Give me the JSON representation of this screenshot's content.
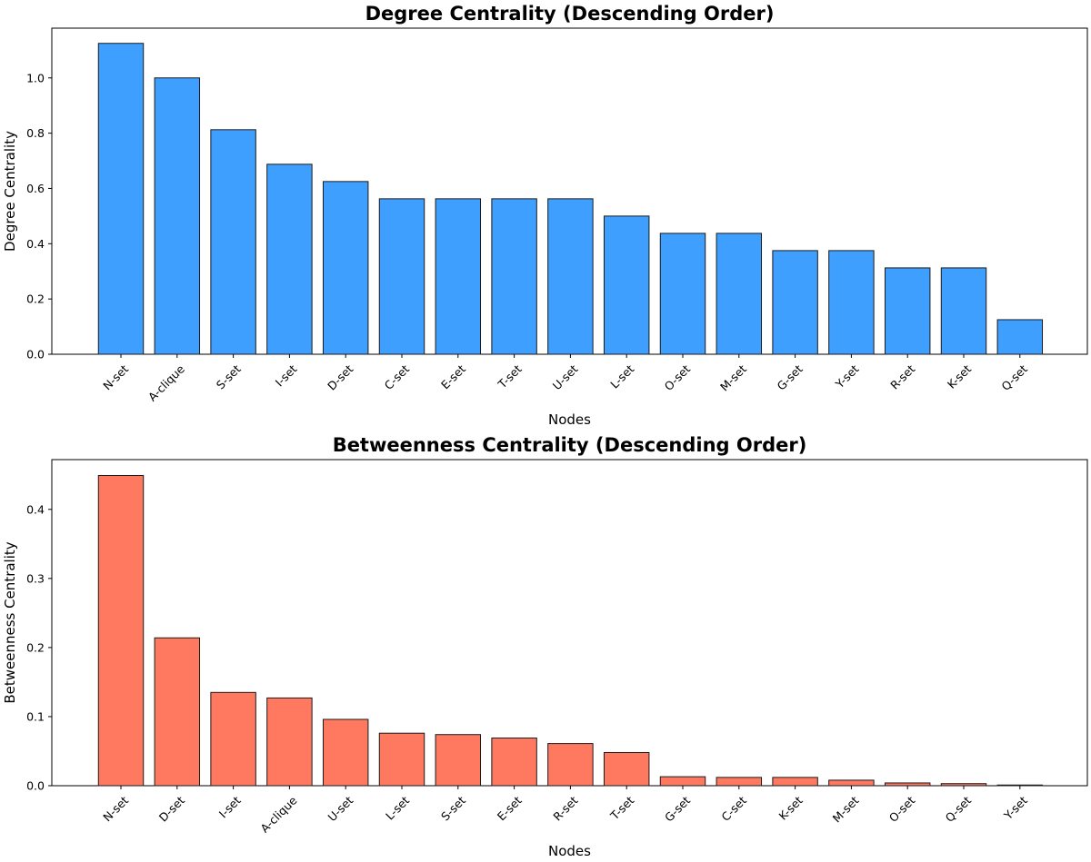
{
  "chart_data": [
    {
      "type": "bar",
      "title": "Degree Centrality (Descending Order)",
      "xlabel": "Nodes",
      "ylabel": "Degree Centrality",
      "ylim": [
        0,
        1.18
      ],
      "yticks": [
        "0.0",
        "0.2",
        "0.4",
        "0.6",
        "0.8",
        "1.0"
      ],
      "ytick_values": [
        0.0,
        0.2,
        0.4,
        0.6,
        0.8,
        1.0
      ],
      "categories": [
        "N-set",
        "A-clique",
        "S-set",
        "I-set",
        "D-set",
        "C-set",
        "E-set",
        "T-set",
        "U-set",
        "L-set",
        "O-set",
        "M-set",
        "G-set",
        "Y-set",
        "R-set",
        "K-set",
        "Q-set"
      ],
      "values": [
        1.125,
        1.0,
        0.8125,
        0.6875,
        0.625,
        0.5625,
        0.5625,
        0.5625,
        0.5625,
        0.5,
        0.4375,
        0.4375,
        0.375,
        0.375,
        0.3125,
        0.3125,
        0.125
      ],
      "color": "#3f9fff",
      "grid": false,
      "legend": "none"
    },
    {
      "type": "bar",
      "title": "Betweenness Centrality (Descending Order)",
      "xlabel": "Nodes",
      "ylabel": "Betweenness Centrality",
      "ylim": [
        0,
        0.472
      ],
      "yticks": [
        "0.0",
        "0.1",
        "0.2",
        "0.3",
        "0.4"
      ],
      "ytick_values": [
        0.0,
        0.1,
        0.2,
        0.3,
        0.4
      ],
      "categories": [
        "N-set",
        "D-set",
        "I-set",
        "A-clique",
        "U-set",
        "L-set",
        "S-set",
        "E-set",
        "R-set",
        "T-set",
        "G-set",
        "C-set",
        "K-set",
        "M-set",
        "O-set",
        "Q-set",
        "Y-set"
      ],
      "values": [
        0.449,
        0.214,
        0.135,
        0.127,
        0.096,
        0.076,
        0.074,
        0.069,
        0.061,
        0.048,
        0.013,
        0.012,
        0.012,
        0.008,
        0.004,
        0.003,
        0.001
      ],
      "color": "#ff7961",
      "grid": false,
      "legend": "none"
    }
  ]
}
